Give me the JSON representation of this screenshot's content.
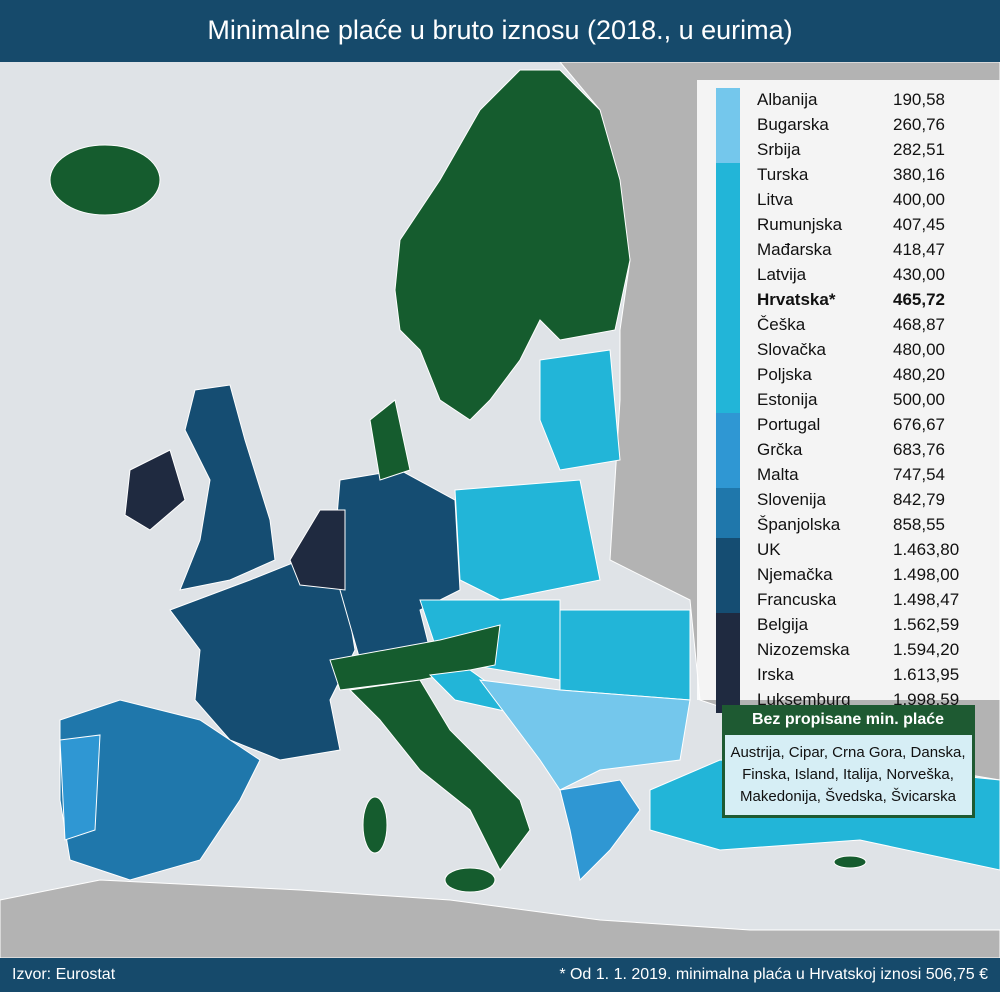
{
  "header": {
    "title": "Minimalne plaće u bruto iznosu (2018., u eurima)"
  },
  "legend": {
    "groups": [
      {
        "color": "#74c7ec",
        "entries": [
          {
            "country": "Albanija",
            "value": "190,58"
          },
          {
            "country": "Bugarska",
            "value": "260,76"
          },
          {
            "country": "Srbija",
            "value": "282,51"
          }
        ]
      },
      {
        "color": "#22b5d8",
        "entries": [
          {
            "country": "Turska",
            "value": "380,16"
          },
          {
            "country": "Litva",
            "value": "400,00"
          },
          {
            "country": "Rumunjska",
            "value": "407,45"
          },
          {
            "country": "Mađarska",
            "value": "418,47"
          },
          {
            "country": "Latvija",
            "value": "430,00"
          },
          {
            "country": "Hrvatska*",
            "value": "465,72",
            "bold": true
          },
          {
            "country": "Češka",
            "value": "468,87"
          },
          {
            "country": "Slovačka",
            "value": "480,00"
          },
          {
            "country": "Poljska",
            "value": "480,20"
          },
          {
            "country": "Estonija",
            "value": "500,00"
          }
        ]
      },
      {
        "color": "#2f97d3",
        "entries": [
          {
            "country": "Portugal",
            "value": "676,67"
          },
          {
            "country": "Grčka",
            "value": "683,76"
          },
          {
            "country": "Malta",
            "value": "747,54"
          }
        ]
      },
      {
        "color": "#1f77ab",
        "entries": [
          {
            "country": "Slovenija",
            "value": "842,79"
          },
          {
            "country": "Španjolska",
            "value": "858,55"
          }
        ]
      },
      {
        "color": "#154d72",
        "entries": [
          {
            "country": "UK",
            "value": "1.463,80"
          },
          {
            "country": "Njemačka",
            "value": "1.498,00"
          },
          {
            "country": "Francuska",
            "value": "1.498,47"
          }
        ]
      },
      {
        "color": "#1f2a40",
        "entries": [
          {
            "country": "Belgija",
            "value": "1.562,59"
          },
          {
            "country": "Nizozemska",
            "value": "1.594,20"
          },
          {
            "country": "Irska",
            "value": "1.613,95"
          },
          {
            "country": "Luksemburg",
            "value": "1.998,59"
          }
        ]
      }
    ]
  },
  "no_minimum": {
    "title": "Bez propisane min. plaće",
    "lines": [
      "Austrija, Cipar, Crna Gora, Danska,",
      "Finska, Island, Italija, Norveška,",
      "Makedonija, Švedska, Švicarska"
    ]
  },
  "footer": {
    "source": "Izvor: Eurostat",
    "note": "* Od 1. 1. 2019. minimalna plaća u Hrvatskoj iznosi 506,75 €"
  }
}
